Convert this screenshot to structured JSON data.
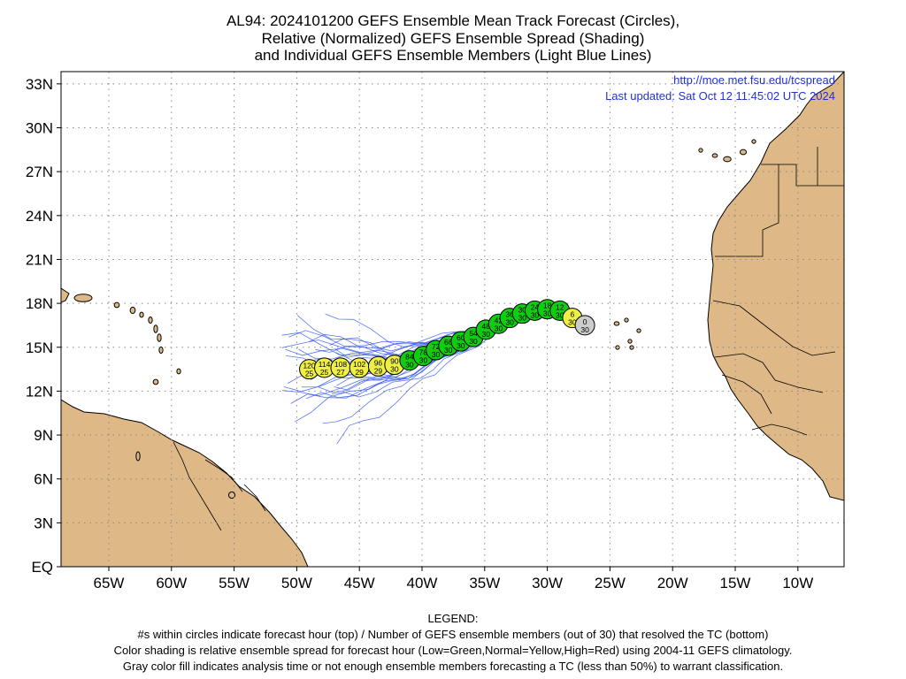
{
  "title": {
    "line1": "AL94: 2024101200 GEFS Ensemble Mean Track Forecast (Circles),",
    "line2": "Relative (Normalized) GEFS Ensemble Spread (Shading)",
    "line3": "and Individual GEFS Ensemble Members (Light Blue Lines)"
  },
  "map": {
    "url": "http://moe.met.fsu.edu/tcspread",
    "updated": "Last updated: Sat Oct 12 11:45:02 UTC 2024",
    "text_color": "#2233cc",
    "land_color": "#deb887",
    "member_line_color": "#3355ee",
    "y_ticks": [
      {
        "lat": 33,
        "label": "33N"
      },
      {
        "lat": 30,
        "label": "30N"
      },
      {
        "lat": 27,
        "label": "27N"
      },
      {
        "lat": 24,
        "label": "24N"
      },
      {
        "lat": 21,
        "label": "21N"
      },
      {
        "lat": 18,
        "label": "18N"
      },
      {
        "lat": 15,
        "label": "15N"
      },
      {
        "lat": 12,
        "label": "12N"
      },
      {
        "lat": 9,
        "label": "9N"
      },
      {
        "lat": 6,
        "label": "6N"
      },
      {
        "lat": 3,
        "label": "3N"
      },
      {
        "lat": 0,
        "label": "EQ"
      }
    ],
    "x_ticks": [
      {
        "lon": -65,
        "label": "65W"
      },
      {
        "lon": -60,
        "label": "60W"
      },
      {
        "lon": -55,
        "label": "55W"
      },
      {
        "lon": -50,
        "label": "50W"
      },
      {
        "lon": -45,
        "label": "45W"
      },
      {
        "lon": -40,
        "label": "40W"
      },
      {
        "lon": -35,
        "label": "35W"
      },
      {
        "lon": -30,
        "label": "30W"
      },
      {
        "lon": -25,
        "label": "25W"
      },
      {
        "lon": -20,
        "label": "20W"
      },
      {
        "lon": -15,
        "label": "15W"
      },
      {
        "lon": -10,
        "label": "10W"
      }
    ],
    "track_colors": {
      "gray": "#cccccc",
      "green": "#11cc11",
      "yellow": "#eeee44"
    },
    "track": [
      {
        "hour": "0",
        "members": "30",
        "lon": -27.0,
        "lat": 16.5,
        "color": "gray"
      },
      {
        "hour": "6",
        "members": "30",
        "lon": -28.0,
        "lat": 17.0,
        "color": "yellow"
      },
      {
        "hour": "12",
        "members": "30",
        "lon": -29.0,
        "lat": 17.5,
        "color": "green"
      },
      {
        "hour": "18",
        "members": "30",
        "lon": -30.0,
        "lat": 17.6,
        "color": "green"
      },
      {
        "hour": "24",
        "members": "30",
        "lon": -31.0,
        "lat": 17.5,
        "color": "green"
      },
      {
        "hour": "30",
        "members": "30",
        "lon": -32.0,
        "lat": 17.3,
        "color": "green"
      },
      {
        "hour": "36",
        "members": "30",
        "lon": -33.0,
        "lat": 17.0,
        "color": "green"
      },
      {
        "hour": "42",
        "members": "30",
        "lon": -33.9,
        "lat": 16.6,
        "color": "green"
      },
      {
        "hour": "48",
        "members": "30",
        "lon": -34.9,
        "lat": 16.2,
        "color": "green"
      },
      {
        "hour": "54",
        "members": "30",
        "lon": -35.9,
        "lat": 15.7,
        "color": "green"
      },
      {
        "hour": "60",
        "members": "30",
        "lon": -36.9,
        "lat": 15.4,
        "color": "green"
      },
      {
        "hour": "66",
        "members": "30",
        "lon": -37.9,
        "lat": 15.1,
        "color": "green"
      },
      {
        "hour": "72",
        "members": "30",
        "lon": -38.9,
        "lat": 14.8,
        "color": "green"
      },
      {
        "hour": "78",
        "members": "30",
        "lon": -39.9,
        "lat": 14.4,
        "color": "green"
      },
      {
        "hour": "84",
        "members": "30",
        "lon": -41.0,
        "lat": 14.1,
        "color": "green"
      },
      {
        "hour": "90",
        "members": "30",
        "lon": -42.2,
        "lat": 13.8,
        "color": "yellow"
      },
      {
        "hour": "96",
        "members": "29",
        "lon": -43.5,
        "lat": 13.7,
        "color": "yellow"
      },
      {
        "hour": "102",
        "members": "29",
        "lon": -45.0,
        "lat": 13.6,
        "color": "yellow"
      },
      {
        "hour": "108",
        "members": "27",
        "lon": -46.5,
        "lat": 13.6,
        "color": "yellow"
      },
      {
        "hour": "114",
        "members": "25",
        "lon": -47.8,
        "lat": 13.6,
        "color": "yellow"
      },
      {
        "hour": "120",
        "members": "25",
        "lon": -49.0,
        "lat": 13.5,
        "color": "yellow"
      }
    ]
  },
  "legend": {
    "heading": "LEGEND:",
    "line1": "#s within circles indicate forecast hour (top) / Number of GEFS ensemble members (out of 30) that resolved the TC (bottom)",
    "line2": "Color shading is relative ensemble spread for forecast hour (Low=Green,Normal=Yellow,High=Red) using 2004-11 GEFS climatology.",
    "line3": "Gray color fill indicates analysis time or not enough ensemble members forecasting a TC (less than 50%) to warrant classification."
  }
}
